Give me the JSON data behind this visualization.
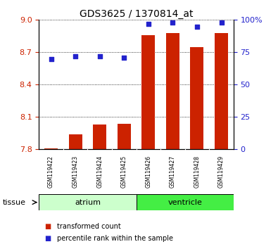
{
  "title": "GDS3625 / 1370814_at",
  "samples": [
    "GSM119422",
    "GSM119423",
    "GSM119424",
    "GSM119425",
    "GSM119426",
    "GSM119427",
    "GSM119428",
    "GSM119429"
  ],
  "transformed_counts": [
    7.81,
    7.94,
    8.03,
    8.04,
    8.86,
    8.88,
    8.75,
    8.88
  ],
  "percentile_ranks": [
    70,
    72,
    72,
    71,
    97,
    98,
    95,
    98
  ],
  "bar_bottom": 7.8,
  "ylim_left": [
    7.8,
    9.0
  ],
  "ylim_right": [
    0,
    100
  ],
  "yticks_left": [
    7.8,
    8.1,
    8.4,
    8.7,
    9.0
  ],
  "yticks_right": [
    0,
    25,
    50,
    75,
    100
  ],
  "bar_color": "#cc2200",
  "dot_color": "#2222cc",
  "tissue_groups": [
    {
      "label": "atrium",
      "samples": [
        0,
        1,
        2,
        3
      ],
      "color": "#ccffcc"
    },
    {
      "label": "ventricle",
      "samples": [
        4,
        5,
        6,
        7
      ],
      "color": "#44ee44"
    }
  ],
  "tissue_label": "tissue",
  "legend_items": [
    {
      "label": "transformed count",
      "color": "#cc2200"
    },
    {
      "label": "percentile rank within the sample",
      "color": "#2222cc"
    }
  ],
  "left_axis_color": "#cc2200",
  "right_axis_color": "#2222cc",
  "grid_color": "#000000",
  "bg_color": "#ffffff",
  "sample_box_color": "#cccccc"
}
